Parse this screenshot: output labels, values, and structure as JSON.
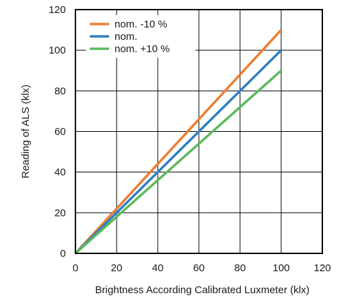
{
  "chart_data": {
    "type": "line",
    "title": "",
    "xlabel": "Brightness According Calibrated Luxmeter (klx)",
    "ylabel": "Reading of ALS (klx)",
    "xlim": [
      0,
      120
    ],
    "ylim": [
      0,
      120
    ],
    "xticks": [
      0,
      20,
      40,
      60,
      80,
      100,
      120
    ],
    "yticks": [
      0,
      20,
      40,
      60,
      80,
      100,
      120
    ],
    "grid": true,
    "legend_position": "top-left",
    "series": [
      {
        "name": "nom. -10 %",
        "color": "#ed7d31",
        "x": [
          0,
          100
        ],
        "y": [
          0,
          110
        ]
      },
      {
        "name": "nom.",
        "color": "#2e7fc4",
        "x": [
          0,
          100
        ],
        "y": [
          0,
          100
        ]
      },
      {
        "name": "nom. +10 %",
        "color": "#5cb85c",
        "x": [
          0,
          100
        ],
        "y": [
          0,
          90
        ]
      }
    ]
  }
}
